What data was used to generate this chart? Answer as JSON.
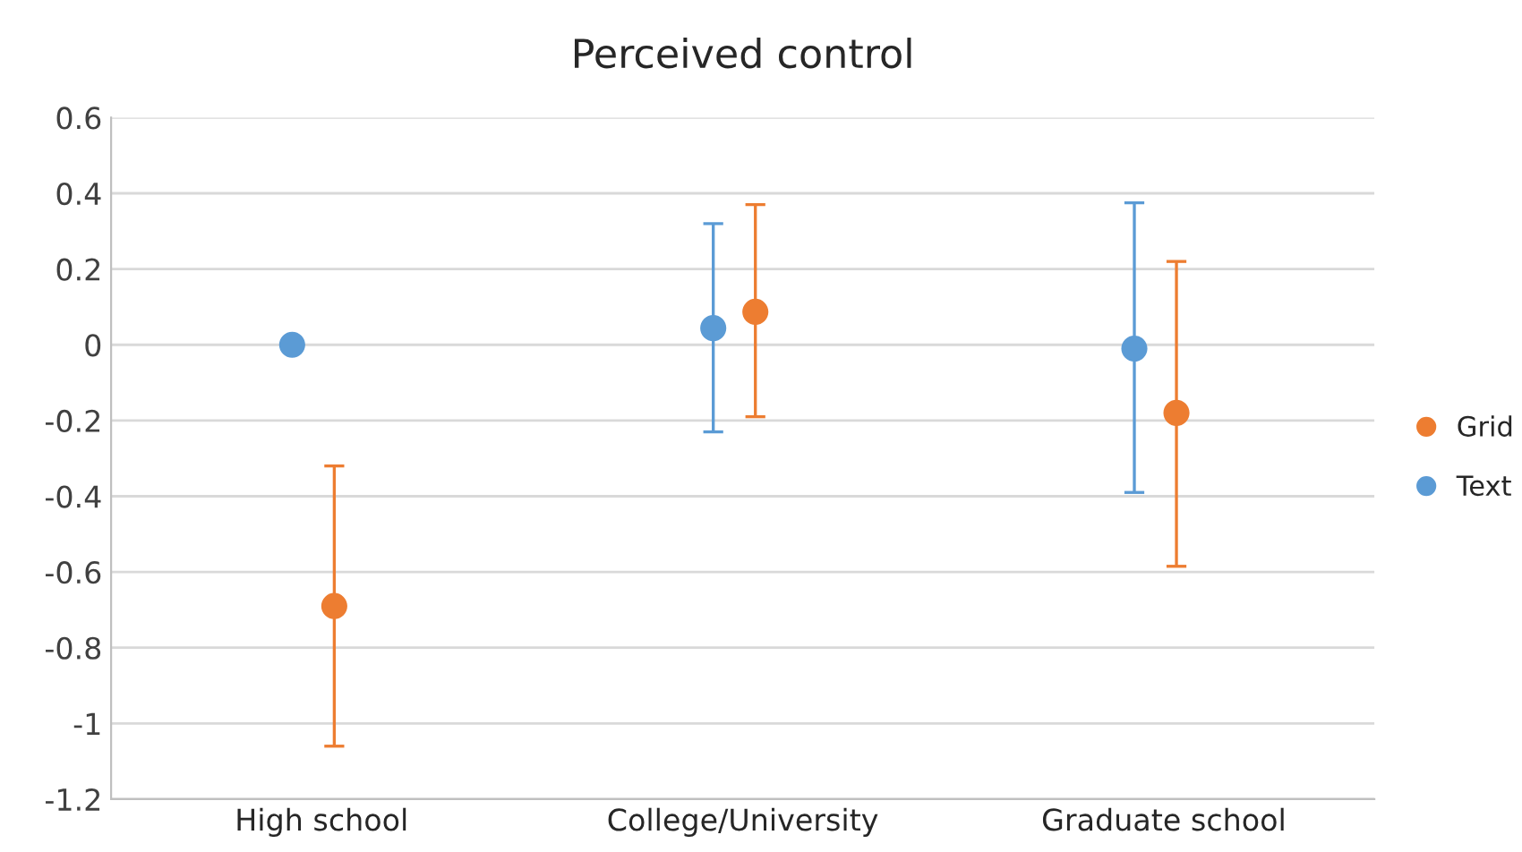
{
  "chart_data": {
    "type": "scatter",
    "title": "Perceived control",
    "categories": [
      "High school",
      "College/University",
      "Graduate school"
    ],
    "series": [
      {
        "name": "Grid",
        "color": "#ed7d31",
        "values": [
          -0.69,
          0.087,
          -0.18
        ],
        "errors": [
          [
            -1.06,
            -0.32
          ],
          [
            -0.19,
            0.37
          ],
          [
            -0.585,
            0.22
          ]
        ]
      },
      {
        "name": "Text",
        "color": "#5b9bd5",
        "values": [
          0,
          0.044,
          -0.01
        ],
        "errors": [
          null,
          [
            -0.23,
            0.32
          ],
          [
            -0.39,
            0.375
          ]
        ]
      }
    ],
    "ylim": [
      -1.2,
      0.6
    ],
    "yticks": [
      -1.2,
      -1,
      -0.8,
      -0.6,
      -0.4,
      -0.2,
      0,
      0.2,
      0.4,
      0.6
    ],
    "grid": "y",
    "legend": "right",
    "marker": "circle"
  }
}
